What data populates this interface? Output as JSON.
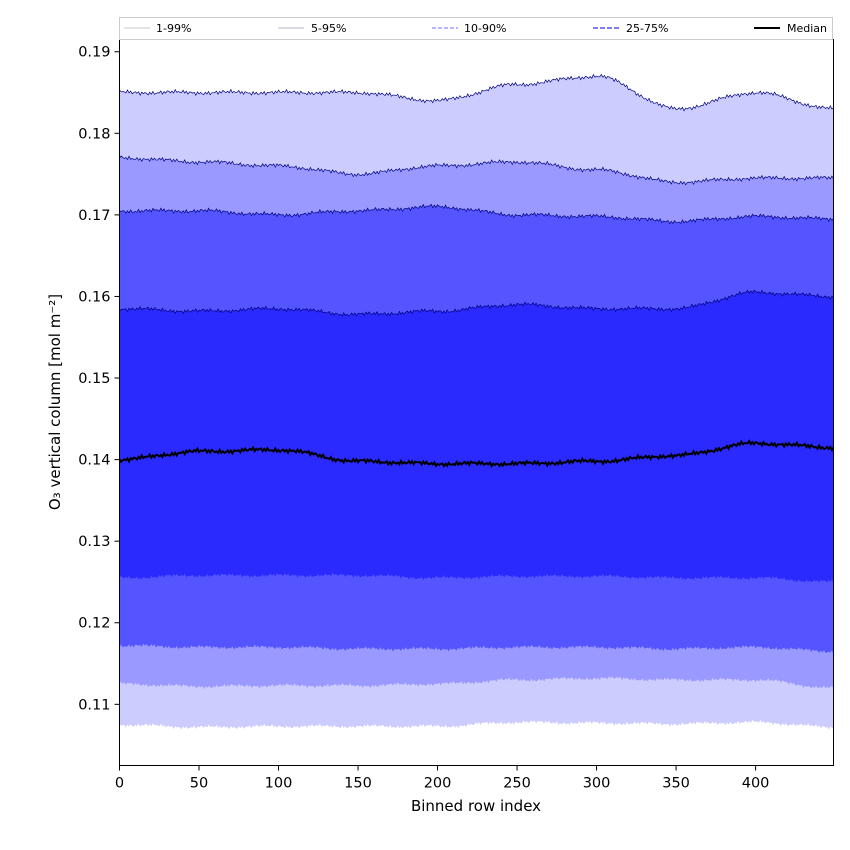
{
  "chart_data": {
    "type": "area",
    "xlabel": "Binned row index",
    "ylabel": "O₃ vertical column [mol m⁻²]",
    "xlim": [
      0,
      449
    ],
    "ylim": [
      0.1025,
      0.1915
    ],
    "xticks": [
      0,
      50,
      100,
      150,
      200,
      250,
      300,
      350,
      400
    ],
    "yticks": [
      0.11,
      0.12,
      0.13,
      0.14,
      0.15,
      0.16,
      0.17,
      0.18,
      0.19
    ],
    "xtick_labels": [
      "0",
      "50",
      "100",
      "150",
      "200",
      "250",
      "300",
      "350",
      "400"
    ],
    "ytick_labels": [
      "0.11",
      "0.12",
      "0.13",
      "0.14",
      "0.15",
      "0.16",
      "0.17",
      "0.18",
      "0.19"
    ],
    "legend_position": "top, horizontal above plot",
    "grid": false,
    "x_knots": [
      0,
      50,
      100,
      150,
      200,
      250,
      300,
      350,
      400,
      449
    ],
    "bands": [
      {
        "name": "1-99%",
        "color": "#ccccff",
        "edge_color": "#c8c8c8",
        "upper": [
          0.185,
          0.185,
          0.185,
          0.185,
          0.184,
          0.186,
          0.187,
          0.183,
          0.185,
          0.183
        ],
        "lower": [
          0.1075,
          0.1072,
          0.1073,
          0.1073,
          0.1073,
          0.1078,
          0.1077,
          0.1076,
          0.1078,
          0.1072
        ]
      },
      {
        "name": "5-95%",
        "color": "#9999ff",
        "edge_color": "#b4b4c8",
        "upper": [
          0.177,
          0.1765,
          0.176,
          0.175,
          0.176,
          0.1765,
          0.1755,
          0.174,
          0.1745,
          0.1745
        ],
        "lower": [
          0.1125,
          0.1122,
          0.1123,
          0.1123,
          0.1125,
          0.113,
          0.1132,
          0.113,
          0.113,
          0.112
        ]
      },
      {
        "name": "10-90%",
        "color": "#5555ff",
        "edge_color": "#6464ff",
        "upper": [
          0.1705,
          0.1705,
          0.17,
          0.1705,
          0.171,
          0.17,
          0.1698,
          0.1692,
          0.1698,
          0.1695
        ],
        "lower": [
          0.1172,
          0.117,
          0.117,
          0.1168,
          0.1168,
          0.117,
          0.117,
          0.1168,
          0.117,
          0.1165
        ]
      },
      {
        "name": "25-75%",
        "color": "#2a2aff",
        "edge_color": "#3c3cff",
        "upper": [
          0.1585,
          0.1582,
          0.1585,
          0.1578,
          0.1582,
          0.159,
          0.1585,
          0.1585,
          0.1605,
          0.16
        ],
        "lower": [
          0.1255,
          0.1258,
          0.1258,
          0.1258,
          0.1255,
          0.1257,
          0.1257,
          0.1255,
          0.1255,
          0.125
        ]
      }
    ],
    "median": {
      "name": "Median",
      "color": "#000000",
      "values": [
        0.14,
        0.141,
        0.1412,
        0.1398,
        0.1395,
        0.1395,
        0.1398,
        0.1405,
        0.142,
        0.1415
      ]
    }
  }
}
